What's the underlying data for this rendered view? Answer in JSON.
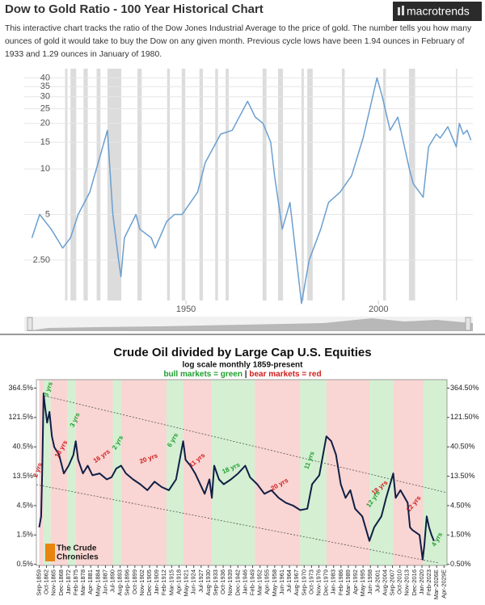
{
  "chart_data": [
    {
      "type": "line",
      "title": "Dow to Gold Ratio - 100 Year Historical Chart",
      "logo": "macrotrends",
      "subtitle": "This interactive chart tracks the ratio of the Dow Jones Industrial Average to the price of gold. The number tells you how many ounces of gold it would take to buy the Dow on any given month. Previous cycle lows have been 1.94 ounces in February of 1933 and 1.29 ounces in January of 1980.",
      "color": "#6a9fd0",
      "band_color": "#dcdcdc",
      "log_scale": true,
      "grid": true,
      "xlim": [
        1908,
        2024.5
      ],
      "ylim": [
        1.35,
        46
      ],
      "xticks": [
        1950,
        2000
      ],
      "yticks": [
        {
          "value": 2.5,
          "label": "2.50"
        },
        5,
        10,
        15,
        20,
        25,
        30,
        35,
        40
      ],
      "bands": [
        {
          "start": 1918.6,
          "end": 1919.2
        },
        {
          "start": 1920,
          "end": 1921.5
        },
        {
          "start": 1923.4,
          "end": 1924.5
        },
        {
          "start": 1926.8,
          "end": 1927.8
        },
        {
          "start": 1929.6,
          "end": 1933.2
        },
        {
          "start": 1937.4,
          "end": 1938.5
        },
        {
          "start": 1945.1,
          "end": 1945.8
        },
        {
          "start": 1948.9,
          "end": 1949.8
        },
        {
          "start": 1953.5,
          "end": 1954.4
        },
        {
          "start": 1957.6,
          "end": 1958.3
        },
        {
          "start": 1960.3,
          "end": 1961.1
        },
        {
          "start": 1969.9,
          "end": 1970.9
        },
        {
          "start": 1973.9,
          "end": 1975.2
        },
        {
          "start": 1980,
          "end": 1980.6
        },
        {
          "start": 1981.5,
          "end": 1982.9
        },
        {
          "start": 1990.5,
          "end": 1991.2
        },
        {
          "start": 2001.2,
          "end": 2001.9
        },
        {
          "start": 2007.9,
          "end": 2009.5
        },
        {
          "start": 2020.1,
          "end": 2020.4
        }
      ],
      "x": [
        1910,
        1912,
        1915,
        1918,
        1920,
        1922,
        1925,
        1929.6,
        1931,
        1932.5,
        1933.1,
        1934,
        1937,
        1938,
        1941,
        1942,
        1945,
        1947,
        1949,
        1953,
        1955,
        1959,
        1962,
        1966,
        1968,
        1970,
        1972,
        1973,
        1975,
        1977,
        1980,
        1982,
        1985,
        1987,
        1990,
        1993,
        1996,
        1999.6,
        2001,
        2003,
        2005,
        2006,
        2008,
        2009,
        2011.6,
        2013,
        2015,
        2016,
        2018,
        2020.2,
        2021,
        2022,
        2023,
        2024
      ],
      "values": [
        3.5,
        5,
        4,
        3,
        3.5,
        5,
        7,
        18,
        5,
        2.5,
        1.94,
        3.5,
        5,
        4,
        3.5,
        3,
        4.5,
        5,
        5,
        7,
        11,
        17,
        18,
        28,
        22,
        20,
        15,
        9,
        4,
        6,
        1.29,
        2.5,
        4,
        6,
        7,
        9,
        16,
        40,
        30,
        18,
        22,
        17,
        10,
        8,
        6.5,
        14,
        17,
        16,
        19,
        14,
        20,
        17,
        18,
        15.5
      ]
    },
    {
      "type": "line",
      "title": "Crude Oil divided by Large Cap U.S. Equities",
      "subtitle": "log scale monthly 1859-present",
      "legend": [
        {
          "text": "bull markets = green",
          "color": "#1f9e2e"
        },
        {
          "text": "|",
          "color": "#222222"
        },
        {
          "text": "bear markets = red",
          "color": "#d01c1c"
        }
      ],
      "logo": [
        "The Crude",
        "Chronicles"
      ],
      "color": "#0f1f45",
      "log_scale": true,
      "xlim": [
        1858.5,
        2030.5
      ],
      "ylim": [
        0.48,
        500
      ],
      "y2lim": [
        0.48,
        500
      ],
      "yticks": [
        {
          "value": 0.5,
          "label": "0.5%"
        },
        {
          "value": 1.5,
          "label": "1.5%"
        },
        {
          "value": 4.5,
          "label": "4.5%"
        },
        {
          "value": 13.5,
          "label": "13.5%"
        },
        {
          "value": 40.5,
          "label": "40.5%"
        },
        {
          "value": 121.5,
          "label": "121.5%"
        },
        {
          "value": 364.5,
          "label": "364.5%"
        }
      ],
      "y2ticks": [
        {
          "value": 0.5,
          "label": "0.50%"
        },
        {
          "value": 1.5,
          "label": "1.50%"
        },
        {
          "value": 4.5,
          "label": "4.50%"
        },
        {
          "value": 13.5,
          "label": "13.50%"
        },
        {
          "value": 40.5,
          "label": "40.50%"
        },
        {
          "value": 121.5,
          "label": "121.50%"
        },
        {
          "value": 364.5,
          "label": "364.50%"
        }
      ],
      "xticks": [
        {
          "value": 1859.67,
          "label": "Sep-1859"
        },
        {
          "value": 1862.75,
          "label": "Oct-1862"
        },
        {
          "value": 1865.83,
          "label": "Nov-1865"
        },
        {
          "value": 1868.92,
          "label": "Dec-1868"
        },
        {
          "value": 1872,
          "label": "Jan-1872"
        },
        {
          "value": 1875.08,
          "label": "Feb-1875"
        },
        {
          "value": 1878.17,
          "label": "Mar-1878"
        },
        {
          "value": 1881.25,
          "label": "Apr-1881"
        },
        {
          "value": 1884.33,
          "label": "May-1884"
        },
        {
          "value": 1887.42,
          "label": "Jun-1887"
        },
        {
          "value": 1890.5,
          "label": "Jul-1890"
        },
        {
          "value": 1893.58,
          "label": "Aug-1893"
        },
        {
          "value": 1896.67,
          "label": "Sep-1896"
        },
        {
          "value": 1899.75,
          "label": "Oct-1899"
        },
        {
          "value": 1902.83,
          "label": "Nov-1902"
        },
        {
          "value": 1905.92,
          "label": "Dec-1905"
        },
        {
          "value": 1909,
          "label": "Jan-1909"
        },
        {
          "value": 1912.08,
          "label": "Feb-1912"
        },
        {
          "value": 1915.17,
          "label": "Mar-1915"
        },
        {
          "value": 1918.25,
          "label": "Apr-1918"
        },
        {
          "value": 1921.33,
          "label": "May-1921"
        },
        {
          "value": 1924.42,
          "label": "Jun-1924"
        },
        {
          "value": 1927.5,
          "label": "Jul-1927"
        },
        {
          "value": 1930.58,
          "label": "Aug-1930"
        },
        {
          "value": 1933.67,
          "label": "Sep-1933"
        },
        {
          "value": 1936.75,
          "label": "Oct-1936"
        },
        {
          "value": 1939.83,
          "label": "Nov-1939"
        },
        {
          "value": 1942.92,
          "label": "Dec-1942"
        },
        {
          "value": 1946,
          "label": "Jan-1946"
        },
        {
          "value": 1949.08,
          "label": "Feb-1949"
        },
        {
          "value": 1952.17,
          "label": "Mar-1952"
        },
        {
          "value": 1955.25,
          "label": "Apr-1955"
        },
        {
          "value": 1958.33,
          "label": "May-1958"
        },
        {
          "value": 1961.42,
          "label": "Jun-1961"
        },
        {
          "value": 1964.5,
          "label": "Jul-1964"
        },
        {
          "value": 1967.58,
          "label": "Aug-1967"
        },
        {
          "value": 1970.67,
          "label": "Sep-1970"
        },
        {
          "value": 1973.75,
          "label": "Oct-1973"
        },
        {
          "value": 1976.83,
          "label": "Nov-1976"
        },
        {
          "value": 1979.92,
          "label": "Dec-1979"
        },
        {
          "value": 1983,
          "label": "Jan-1983"
        },
        {
          "value": 1986.08,
          "label": "Feb-1986"
        },
        {
          "value": 1989.17,
          "label": "Mar-1989"
        },
        {
          "value": 1992.25,
          "label": "Apr-1992"
        },
        {
          "value": 1995.33,
          "label": "May-1995"
        },
        {
          "value": 1998.42,
          "label": "Jun-1998"
        },
        {
          "value": 2001.5,
          "label": "Jul-2001"
        },
        {
          "value": 2004.58,
          "label": "Aug-2004"
        },
        {
          "value": 2007.67,
          "label": "Sep-2007"
        },
        {
          "value": 2010.75,
          "label": "Oct-2010"
        },
        {
          "value": 2013.83,
          "label": "Nov-2013"
        },
        {
          "value": 2016.92,
          "label": "Dec-2016"
        },
        {
          "value": 2020,
          "label": "Jan-2020"
        },
        {
          "value": 2023.08,
          "label": "Feb-2023"
        },
        {
          "value": 2026.17,
          "label": "Mar-2026E"
        },
        {
          "value": 2029.25,
          "label": "Apr-2029E"
        }
      ],
      "bands": [
        {
          "start": 1859.67,
          "end": 1861.5,
          "color": "#f9d5d3"
        },
        {
          "start": 1861.5,
          "end": 1864.5,
          "color": "#d4efd2"
        },
        {
          "start": 1864.5,
          "end": 1871.5,
          "color": "#f9d5d3"
        },
        {
          "start": 1871.5,
          "end": 1875,
          "color": "#d4efd2"
        },
        {
          "start": 1875,
          "end": 1890.5,
          "color": "#f9d5d3"
        },
        {
          "start": 1890.5,
          "end": 1894,
          "color": "#d4efd2"
        },
        {
          "start": 1894,
          "end": 1913,
          "color": "#f9d5d3"
        },
        {
          "start": 1913,
          "end": 1920,
          "color": "#d4efd2"
        },
        {
          "start": 1920,
          "end": 1932,
          "color": "#f9d5d3"
        },
        {
          "start": 1932,
          "end": 1950,
          "color": "#d4efd2"
        },
        {
          "start": 1950,
          "end": 1969,
          "color": "#f9d5d3"
        },
        {
          "start": 1969,
          "end": 1980,
          "color": "#d4efd2"
        },
        {
          "start": 1980,
          "end": 1998,
          "color": "#f9d5d3"
        },
        {
          "start": 1998,
          "end": 2008,
          "color": "#d4efd2"
        },
        {
          "start": 2008,
          "end": 2020.5,
          "color": "#f9d5d3"
        },
        {
          "start": 2020.5,
          "end": 2030.5,
          "color": "#d4efd2"
        }
      ],
      "annotations": [
        {
          "text": "2 yrs",
          "color": "#d01c1c"
        },
        {
          "text": "3 yrs",
          "color": "#1f9e2e"
        },
        {
          "text": "18 yrs",
          "color": "#d01c1c"
        },
        {
          "text": "3 yrs",
          "color": "#1f9e2e"
        },
        {
          "text": "16 yrs",
          "color": "#d01c1c"
        },
        {
          "text": "2 yrs",
          "color": "#1f9e2e"
        },
        {
          "text": "20 yrs",
          "color": "#d01c1c"
        },
        {
          "text": "6 yrs",
          "color": "#1f9e2e"
        },
        {
          "text": "11 yrs",
          "color": "#d01c1c"
        },
        {
          "text": "18 yrs",
          "color": "#1f9e2e"
        },
        {
          "text": "20 yrs",
          "color": "#d01c1c"
        },
        {
          "text": "11 yrs",
          "color": "#1f9e2e"
        },
        {
          "text": "18 yrs",
          "color": "#d01c1c"
        },
        {
          "text": "12 yrs",
          "color": "#1f9e2e"
        },
        {
          "text": "12 yrs",
          "color": "#d01c1c"
        },
        {
          "text": "4 yrs",
          "color": "#1f9e2e"
        }
      ],
      "x": [
        1859.67,
        1860.5,
        1861,
        1861.5,
        1862,
        1863,
        1864,
        1865,
        1866,
        1868,
        1870,
        1872,
        1874,
        1875,
        1876,
        1878,
        1880,
        1882,
        1885,
        1888,
        1890,
        1892,
        1894,
        1896,
        1899,
        1902,
        1905,
        1908,
        1911,
        1914,
        1917,
        1920,
        1921,
        1923,
        1925,
        1929,
        1931,
        1932,
        1933,
        1935,
        1937,
        1940,
        1943,
        1946,
        1948,
        1951,
        1954,
        1957,
        1960,
        1963,
        1966,
        1969,
        1972,
        1974,
        1977,
        1980,
        1982,
        1984,
        1986,
        1988,
        1990,
        1992,
        1995,
        1998,
        2000,
        2003,
        2005,
        2008,
        2009,
        2011,
        2014,
        2015,
        2016,
        2019,
        2020.3,
        2021,
        2022,
        2023,
        2024,
        2025
      ],
      "values": [
        2,
        3,
        20,
        300,
        200,
        100,
        150,
        60,
        40,
        30,
        15,
        20,
        30,
        50,
        25,
        15,
        20,
        14,
        15,
        12,
        13,
        18,
        20,
        15,
        12,
        10,
        8,
        11,
        9,
        8,
        12,
        50,
        25,
        20,
        15,
        7,
        12,
        6,
        20,
        12,
        10,
        12,
        15,
        20,
        13,
        10,
        7,
        8,
        6,
        5,
        4.5,
        3.8,
        4,
        10,
        14,
        60,
        50,
        30,
        10,
        6,
        8,
        4,
        3,
        1.2,
        2,
        3,
        6,
        15,
        6,
        8,
        5,
        2,
        1.8,
        1.5,
        0.6,
        1,
        3,
        2,
        1.5,
        1.2
      ]
    }
  ]
}
